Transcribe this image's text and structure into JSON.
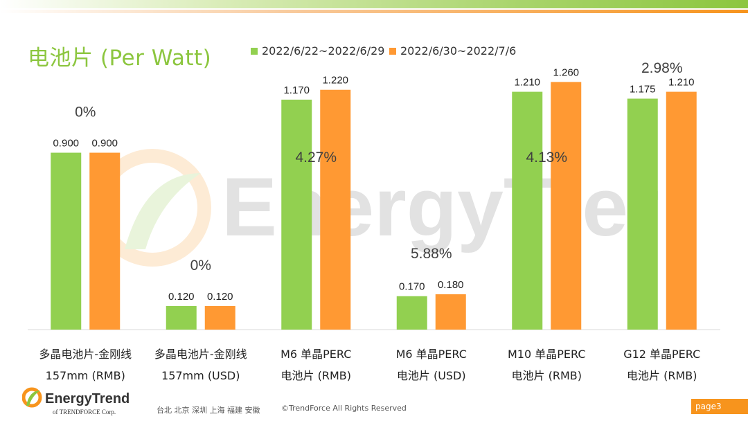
{
  "title": "电池片 (Per Watt)",
  "colors": {
    "green": "#92d050",
    "orange": "#ff9933",
    "title": "#8cc63f",
    "accent": "#f7941d"
  },
  "chart_data": {
    "type": "bar",
    "title": "电池片 (Per Watt)",
    "categories": [
      [
        "多晶电池片-金刚线",
        "157mm (RMB)"
      ],
      [
        "多晶电池片-金刚线",
        "157mm (USD)"
      ],
      [
        "M6 单晶PERC",
        "电池片 (RMB)"
      ],
      [
        "M6 单晶PERC",
        "电池片 (USD)"
      ],
      [
        "M10 单晶PERC",
        "电池片 (RMB)"
      ],
      [
        "G12 单晶PERC",
        "电池片 (RMB)"
      ]
    ],
    "series": [
      {
        "name": "2022/6/22~2022/6/29",
        "values": [
          0.9,
          0.12,
          1.17,
          0.17,
          1.21,
          1.175
        ],
        "labels": [
          "0.900",
          "0.120",
          "1.170",
          "0.170",
          "1.210",
          "1.175"
        ]
      },
      {
        "name": "2022/6/30~2022/7/6",
        "values": [
          0.9,
          0.12,
          1.22,
          0.18,
          1.26,
          1.21
        ],
        "labels": [
          "0.900",
          "0.120",
          "1.220",
          "0.180",
          "1.260",
          "1.210"
        ]
      }
    ],
    "changes": [
      "0%",
      "0%",
      "4.27%",
      "5.88%",
      "4.13%",
      "2.98%"
    ],
    "ylim": [
      0,
      1.3
    ],
    "legend_position": "top"
  },
  "watermark_text": "EnergyTrend",
  "footer": {
    "logo_main": "EnergyTrend",
    "logo_sub": "of TRENDFORCE Corp.",
    "cities": "台北  北京  深圳  上海  福建  安徽",
    "copyright": "©TrendForce All Rights Reserved",
    "page": "page3"
  }
}
